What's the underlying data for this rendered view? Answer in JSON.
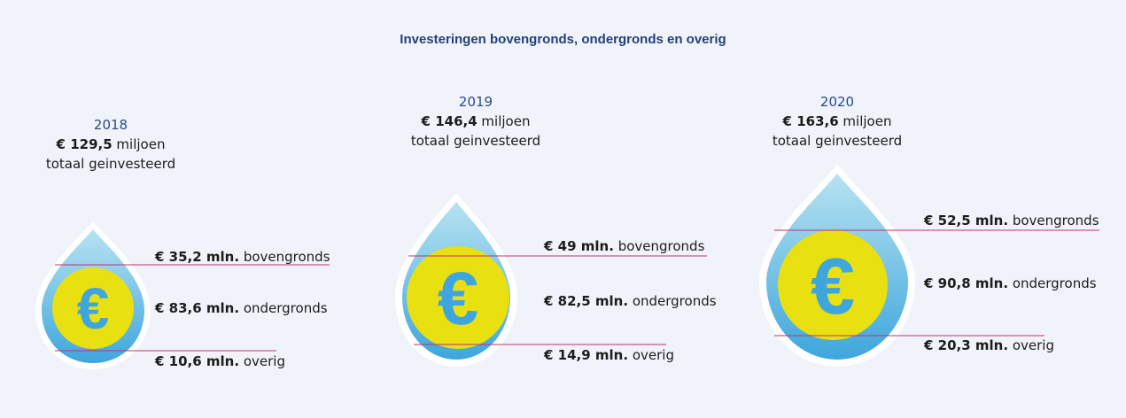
{
  "title": "Investeringen bovengronds, ondergronds en overig",
  "icon": "euro-icon",
  "colors": {
    "background": "#f0f3f9",
    "drop_top": "#b7e3f1",
    "drop_bottom": "#3ea6dc",
    "coin": "#e8e011",
    "euro": "#3ea6dc",
    "line": "#c2306f",
    "title": "#24407d"
  },
  "chart_data": {
    "type": "bar",
    "title": "Investeringen bovengronds, ondergronds en overig",
    "categories": [
      "2018",
      "2019",
      "2020"
    ],
    "total_unit": "miljoen",
    "total_suffix": "totaal geinvesteerd",
    "totals": [
      129.5,
      146.4,
      163.6
    ],
    "totals_text": [
      "€ 129,5",
      "€ 146,4",
      "€ 163,6"
    ],
    "series": [
      {
        "name": "bovengronds",
        "values": [
          35.2,
          49,
          52.5
        ],
        "values_text": [
          "€ 35,2 mln.",
          "€ 49 mln.",
          "€ 52,5 mln."
        ]
      },
      {
        "name": "ondergronds",
        "values": [
          83.6,
          82.5,
          90.8
        ],
        "values_text": [
          "€ 83,6 mln.",
          "€ 82,5 mln.",
          "€ 90,8 mln."
        ]
      },
      {
        "name": "overig",
        "values": [
          10.6,
          14.9,
          20.3
        ],
        "values_text": [
          "€ 10,6 mln.",
          "€ 14,9 mln.",
          "€ 20,3 mln."
        ]
      }
    ]
  }
}
